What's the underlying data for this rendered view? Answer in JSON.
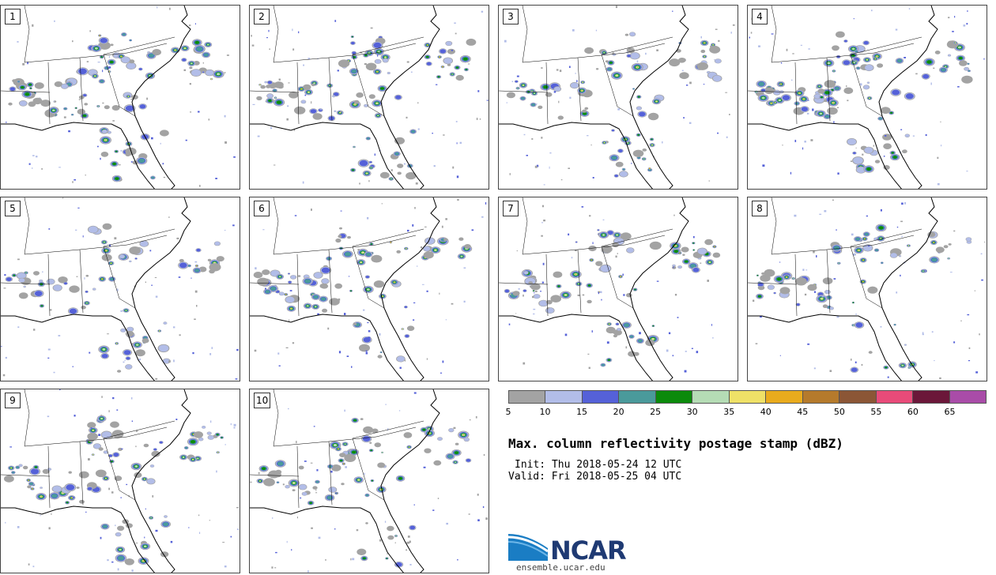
{
  "panels": [
    {
      "label": "1",
      "seed": 11
    },
    {
      "label": "2",
      "seed": 23
    },
    {
      "label": "3",
      "seed": 37
    },
    {
      "label": "4",
      "seed": 41
    },
    {
      "label": "5",
      "seed": 53
    },
    {
      "label": "6",
      "seed": 67
    },
    {
      "label": "7",
      "seed": 71
    },
    {
      "label": "8",
      "seed": 89
    },
    {
      "label": "9",
      "seed": 97
    },
    {
      "label": "10",
      "seed": 103
    }
  ],
  "colorbar": {
    "ticks": [
      "5",
      "10",
      "15",
      "20",
      "25",
      "30",
      "35",
      "40",
      "45",
      "50",
      "55",
      "60",
      "65"
    ],
    "colors": [
      "#a3a3a3",
      "#b2bde8",
      "#5561d8",
      "#4a9a9b",
      "#0b8a0b",
      "#b5dcb5",
      "#efe167",
      "#e9ab1d",
      "#b57a2c",
      "#8b5636",
      "#e84b79",
      "#6b1739",
      "#a94ca8"
    ]
  },
  "title": "Max. column reflectivity postage stamp (dBZ)",
  "init": "Init: Thu 2018-05-24 12 UTC",
  "valid": "Valid: Fri 2018-05-25 04 UTC",
  "logo": {
    "name": "NCAR",
    "url": "ensemble.ucar.edu"
  }
}
